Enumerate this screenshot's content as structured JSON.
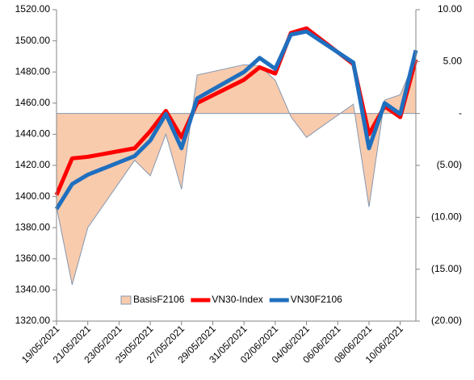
{
  "chart_data": {
    "type": "line",
    "x": [
      "19/05/2021",
      "20/05/2021",
      "21/05/2021",
      "24/05/2021",
      "25/05/2021",
      "26/05/2021",
      "27/05/2021",
      "28/05/2021",
      "31/05/2021",
      "01/06/2021",
      "02/06/2021",
      "03/06/2021",
      "04/06/2021",
      "07/06/2021",
      "08/06/2021",
      "09/06/2021",
      "10/06/2021",
      "11/06/2021"
    ],
    "xlim": [
      "19/05/2021",
      "11/06/2021"
    ],
    "xticks": [
      "19/05/2021",
      "21/05/2021",
      "23/05/2021",
      "25/05/2021",
      "27/05/2021",
      "29/05/2021",
      "31/05/2021",
      "02/06/2021",
      "04/06/2021",
      "06/06/2021",
      "08/06/2021",
      "10/06/2021"
    ],
    "ylim": [
      1320,
      1520
    ],
    "yticks": [
      {
        "value": 1320,
        "label": "1320.00"
      },
      {
        "value": 1340,
        "label": "1340.00"
      },
      {
        "value": 1360,
        "label": "1360.00"
      },
      {
        "value": 1380,
        "label": "1380.00"
      },
      {
        "value": 1400,
        "label": "1400.00"
      },
      {
        "value": 1420,
        "label": "1420.00"
      },
      {
        "value": 1440,
        "label": "1440.00"
      },
      {
        "value": 1460,
        "label": "1460.00"
      },
      {
        "value": 1480,
        "label": "1480.00"
      },
      {
        "value": 1500,
        "label": "1500.00"
      },
      {
        "value": 1520,
        "label": "1520.00"
      }
    ],
    "y2lim": [
      -20,
      10
    ],
    "y2ticks": [
      {
        "value": 10,
        "label": "10.00"
      },
      {
        "value": 5,
        "label": "5.00"
      },
      {
        "value": 0,
        "label": "-"
      },
      {
        "value": -5,
        "label": "(5.00)"
      },
      {
        "value": -10,
        "label": "(10.00)"
      },
      {
        "value": -15,
        "label": "(15.00)"
      },
      {
        "value": -20,
        "label": "(20.00)"
      }
    ],
    "legend": "bottom",
    "series": [
      {
        "name": "BasisF2106",
        "type": "area",
        "axis": "y2",
        "color": "#f8cbad",
        "edge": "#8497b0",
        "values": [
          -9,
          -16.5,
          -11,
          -4.5,
          -6,
          -2,
          -7.3,
          3.7,
          4.7,
          4.6,
          3.2,
          -0.3,
          -2.3,
          0.9,
          -9,
          1.3,
          1.8,
          5.4
        ]
      },
      {
        "name": "VN30-Index",
        "type": "line",
        "color": "#ff0000",
        "values": [
          1401,
          1424.5,
          1425.5,
          1431,
          1442,
          1455,
          1438,
          1460,
          1475,
          1483,
          1479,
          1505,
          1508,
          1485,
          1440,
          1458,
          1451,
          1488
        ]
      },
      {
        "name": "VN30F2106",
        "type": "line",
        "color": "#1f6fbf",
        "values": [
          1392,
          1408,
          1414,
          1426,
          1436,
          1453,
          1431,
          1463,
          1480,
          1489,
          1482,
          1504,
          1506,
          1486,
          1431,
          1460,
          1453,
          1494
        ]
      }
    ]
  }
}
